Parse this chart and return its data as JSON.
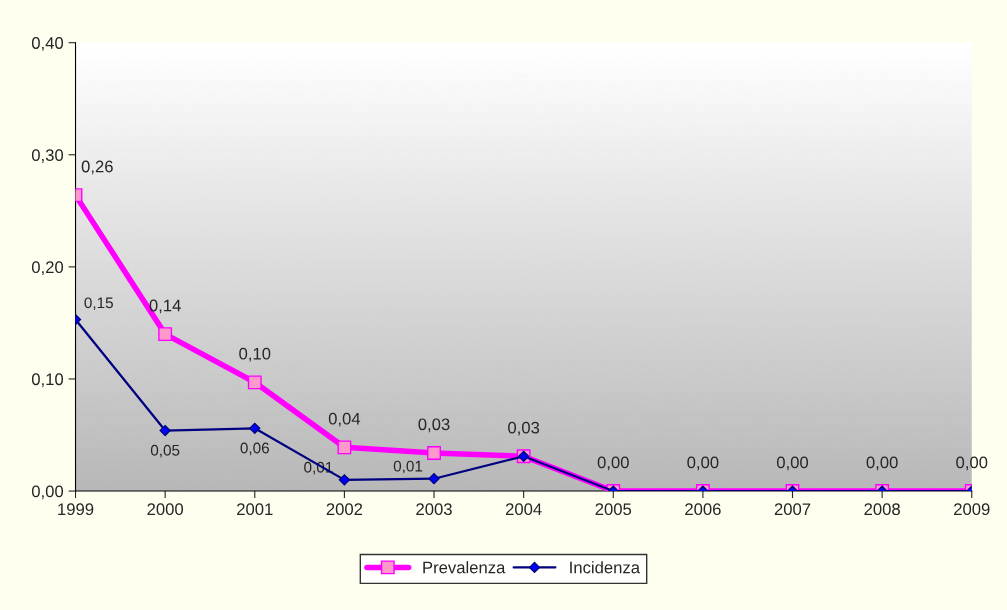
{
  "chart_data": {
    "type": "line",
    "categories": [
      "1999",
      "2000",
      "2001",
      "2002",
      "2003",
      "2004",
      "2005",
      "2006",
      "2007",
      "2008",
      "2009"
    ],
    "series": [
      {
        "name": "Prevalenza",
        "color": "#ff00ff",
        "marker": "square",
        "values": [
          0.264,
          0.14,
          0.097,
          0.039,
          0.034,
          0.031,
          0,
          0,
          0,
          0,
          0
        ],
        "value_labels": [
          "0,26",
          "0,14",
          "0,10",
          "0,04",
          "0,03",
          "0,03",
          "0,00",
          "0,00",
          "0,00",
          "0,00",
          "0,00"
        ]
      },
      {
        "name": "Incidenza",
        "color": "#000080",
        "marker": "diamond",
        "values": [
          0.153,
          0.054,
          0.056,
          0.01,
          0.011,
          0.031,
          0,
          0,
          0,
          0,
          0
        ],
        "value_labels": [
          "0,15",
          "0,05",
          "0,06",
          "0,01",
          "0,01",
          null,
          null,
          null,
          null,
          null,
          null
        ]
      }
    ],
    "ylim": [
      0,
      0.4
    ],
    "yticks": [
      {
        "value": 0,
        "label": "0,00"
      },
      {
        "value": 0.1,
        "label": "0,10"
      },
      {
        "value": 0.2,
        "label": "0,20"
      },
      {
        "value": 0.3,
        "label": "0,30"
      },
      {
        "value": 0.4,
        "label": "0,40"
      }
    ],
    "grid": false,
    "legend": "bottom"
  }
}
